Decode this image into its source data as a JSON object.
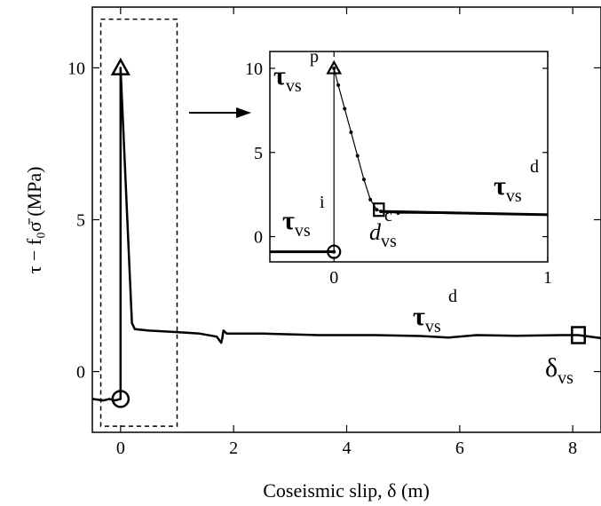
{
  "chart_data": [
    {
      "type": "line",
      "title": "",
      "xlabel": "Coseismic slip, δ (m)",
      "ylabel": "τ − f₀σ̄ (MPa)",
      "xlim": [
        -0.5,
        8.5
      ],
      "ylim": [
        -2,
        12
      ],
      "xticks": [
        0,
        2,
        4,
        6,
        8
      ],
      "xtick_labels": [
        "0",
        "2",
        "4",
        "6",
        "8"
      ],
      "yticks": [
        0,
        5,
        10
      ],
      "ytick_labels": [
        "0",
        "5",
        "10"
      ],
      "grid": false,
      "series": [
        {
          "x": [
            -0.5,
            -0.3,
            -0.2,
            -0.1,
            0.0,
            0.0,
            0.0,
            0.2,
            0.25,
            0.5,
            1.0,
            1.4,
            1.7,
            1.78,
            1.8,
            1.82,
            1.88,
            2.5,
            3.5,
            4.5,
            5.3,
            5.8,
            6.3,
            7.0,
            7.8,
            8.0,
            8.1,
            8.5
          ],
          "y": [
            -0.9,
            -0.95,
            -0.9,
            -0.95,
            -0.9,
            10.0,
            10.0,
            1.6,
            1.4,
            1.35,
            1.3,
            1.25,
            1.15,
            0.95,
            1.1,
            1.35,
            1.25,
            1.25,
            1.2,
            1.2,
            1.17,
            1.12,
            1.2,
            1.18,
            1.2,
            1.2,
            1.2,
            1.1
          ]
        }
      ],
      "markers": [
        {
          "shape": "circle",
          "x": 0.0,
          "y": -0.9
        },
        {
          "shape": "triangle",
          "x": 0.0,
          "y": 10.0
        },
        {
          "shape": "square",
          "x": 8.1,
          "y": 1.2
        }
      ],
      "highlight_box": {
        "x": [
          -0.35,
          1.0
        ],
        "y": [
          -1.8,
          11.6
        ]
      },
      "annotations": {
        "tau_d_main": "τ",
        "tau_d_sup": "d",
        "tau_d_sub": "vs",
        "delta_main": "δ",
        "delta_sub": "vs"
      }
    },
    {
      "type": "line",
      "title": "",
      "xlabel": "",
      "ylabel": "",
      "xlim": [
        -0.3,
        1.0
      ],
      "ylim": [
        -1.5,
        11
      ],
      "xticks": [
        0,
        1
      ],
      "xtick_labels": [
        "0",
        "1"
      ],
      "yticks": [
        0,
        5,
        10
      ],
      "ytick_labels": [
        "0",
        "5",
        "10"
      ],
      "grid": false,
      "series": [
        {
          "x": [
            -0.3,
            -0.02,
            0.0,
            0.0,
            0.02,
            0.05,
            0.08,
            0.11,
            0.14,
            0.17,
            0.2,
            0.22,
            0.25,
            0.3,
            0.5,
            0.7,
            1.0
          ],
          "y": [
            -0.9,
            -0.9,
            -0.9,
            10.0,
            9.0,
            7.6,
            6.2,
            4.8,
            3.4,
            2.2,
            1.6,
            1.5,
            1.45,
            1.4,
            1.38,
            1.35,
            1.3
          ]
        }
      ],
      "markers": [
        {
          "shape": "circle",
          "x": 0.0,
          "y": -0.9
        },
        {
          "shape": "triangle",
          "x": 0.0,
          "y": 10.0
        },
        {
          "shape": "square",
          "x": 0.21,
          "y": 1.6
        }
      ],
      "annotations": {
        "tau_p_main": "τ",
        "tau_p_sup": "p",
        "tau_p_sub": "vs",
        "tau_i_main": "τ",
        "tau_i_sup": "i",
        "tau_i_sub": "vs",
        "tau_d_main": "τ",
        "tau_d_sup": "d",
        "tau_d_sub": "vs",
        "d_c_main": "d",
        "d_c_sup": "c",
        "d_c_sub": "vs"
      }
    }
  ]
}
